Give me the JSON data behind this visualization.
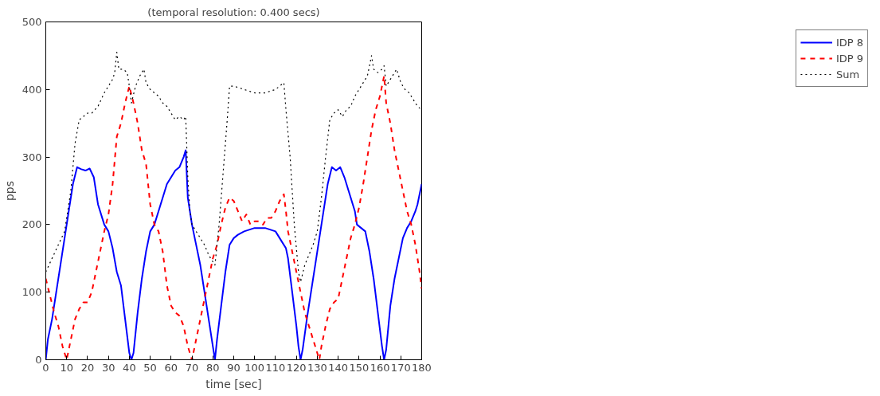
{
  "chart_data": {
    "type": "line",
    "title": "(temporal resolution: 0.400 secs)",
    "xlabel": "time [sec]",
    "ylabel": "pps",
    "xlim": [
      0,
      180
    ],
    "ylim": [
      0,
      500
    ],
    "xticks": [
      0,
      10,
      20,
      30,
      40,
      50,
      60,
      70,
      80,
      90,
      100,
      110,
      120,
      130,
      140,
      150,
      160,
      170,
      180
    ],
    "yticks": [
      0,
      100,
      200,
      300,
      400,
      500
    ],
    "grid": false,
    "legend": "right",
    "marker": "none",
    "series": [
      {
        "name": "IDP 8",
        "color": "#0000ff",
        "line_style": "solid",
        "x": [
          0,
          1,
          3,
          5,
          7,
          9,
          11,
          13,
          15,
          17,
          19,
          21,
          23,
          25,
          27,
          28,
          30,
          32,
          34,
          36,
          38,
          40,
          41,
          42,
          44,
          46,
          48,
          50,
          52,
          54,
          56,
          58,
          60,
          62,
          64,
          66,
          67,
          68,
          70,
          72,
          74,
          76,
          78,
          80,
          81,
          82,
          84,
          86,
          88,
          90,
          92,
          95,
          100,
          105,
          110,
          113,
          115,
          116,
          118,
          120,
          121,
          122,
          123,
          125,
          127,
          129,
          131,
          133,
          135,
          137,
          139,
          141,
          143,
          145,
          147,
          148,
          149,
          151,
          153,
          155,
          157,
          159,
          161,
          162,
          163,
          165,
          167,
          169,
          171,
          173,
          175,
          177,
          178,
          180
        ],
        "values": [
          0,
          30,
          60,
          100,
          140,
          180,
          220,
          260,
          285,
          282,
          280,
          283,
          270,
          230,
          210,
          200,
          190,
          165,
          130,
          110,
          60,
          10,
          0,
          10,
          70,
          120,
          160,
          190,
          200,
          220,
          240,
          260,
          270,
          280,
          285,
          300,
          310,
          240,
          200,
          170,
          140,
          100,
          60,
          20,
          0,
          30,
          80,
          130,
          170,
          180,
          185,
          190,
          195,
          195,
          190,
          175,
          165,
          150,
          100,
          50,
          20,
          0,
          15,
          60,
          100,
          140,
          180,
          220,
          260,
          285,
          280,
          285,
          270,
          250,
          230,
          220,
          200,
          195,
          190,
          160,
          120,
          70,
          20,
          0,
          15,
          80,
          120,
          150,
          180,
          195,
          205,
          220,
          230,
          260
        ]
      },
      {
        "name": "IDP 9",
        "color": "#ff0000",
        "line_style": "dashed",
        "x": [
          0,
          2,
          4,
          6,
          8,
          10,
          12,
          14,
          16,
          18,
          20,
          22,
          24,
          26,
          28,
          30,
          32,
          34,
          36,
          38,
          40,
          42,
          44,
          46,
          48,
          50,
          52,
          54,
          56,
          58,
          60,
          62,
          64,
          66,
          68,
          70,
          72,
          74,
          76,
          78,
          80,
          82,
          84,
          86,
          88,
          90,
          92,
          94,
          96,
          98,
          100,
          102,
          104,
          106,
          108,
          110,
          112,
          114,
          115,
          116,
          118,
          120,
          122,
          124,
          126,
          128,
          130,
          131,
          132,
          134,
          136,
          138,
          140,
          142,
          144,
          146,
          148,
          150,
          152,
          154,
          156,
          158,
          160,
          162,
          163,
          165,
          167,
          169,
          171,
          173,
          175,
          177,
          179,
          180
        ],
        "values": [
          120,
          95,
          70,
          50,
          20,
          0,
          30,
          60,
          75,
          85,
          85,
          100,
          130,
          160,
          190,
          215,
          260,
          330,
          350,
          380,
          405,
          380,
          350,
          310,
          290,
          230,
          200,
          190,
          160,
          110,
          80,
          70,
          65,
          50,
          20,
          0,
          30,
          60,
          90,
          120,
          150,
          170,
          200,
          225,
          240,
          235,
          220,
          205,
          215,
          200,
          205,
          205,
          200,
          210,
          210,
          220,
          235,
          245,
          220,
          190,
          160,
          130,
          100,
          70,
          50,
          30,
          10,
          0,
          20,
          50,
          75,
          85,
          90,
          120,
          150,
          180,
          200,
          225,
          260,
          300,
          340,
          370,
          390,
          420,
          380,
          350,
          310,
          280,
          250,
          220,
          200,
          170,
          130,
          105
        ]
      },
      {
        "name": "Sum",
        "color": "#000000",
        "line_style": "dotted",
        "x": [
          0,
          3,
          6,
          9,
          12,
          14,
          16,
          18,
          20,
          22,
          25,
          28,
          30,
          32,
          33,
          34,
          35,
          37,
          39,
          40,
          41,
          43,
          45,
          47,
          48,
          50,
          52,
          54,
          56,
          58,
          60,
          62,
          64,
          66,
          67,
          68,
          69,
          70,
          72,
          74,
          76,
          78,
          80,
          81,
          83,
          85,
          87,
          88,
          90,
          95,
          100,
          105,
          110,
          114,
          115,
          117,
          119,
          121,
          122,
          124,
          126,
          128,
          130,
          132,
          134,
          136,
          138,
          140,
          142,
          144,
          146,
          148,
          150,
          152,
          154,
          156,
          157,
          159,
          161,
          162,
          163,
          165,
          168,
          170,
          172,
          174,
          176,
          178,
          180
        ],
        "values": [
          130,
          150,
          170,
          190,
          250,
          320,
          355,
          360,
          365,
          365,
          375,
          395,
          405,
          415,
          425,
          455,
          430,
          430,
          425,
          405,
          380,
          405,
          420,
          430,
          410,
          400,
          395,
          390,
          380,
          375,
          365,
          355,
          360,
          355,
          360,
          270,
          220,
          200,
          190,
          180,
          170,
          155,
          145,
          140,
          200,
          280,
          360,
          405,
          405,
          400,
          395,
          395,
          400,
          410,
          370,
          300,
          200,
          130,
          115,
          140,
          155,
          170,
          190,
          240,
          300,
          355,
          365,
          370,
          360,
          370,
          375,
          390,
          400,
          410,
          420,
          450,
          430,
          425,
          430,
          435,
          405,
          415,
          430,
          410,
          400,
          395,
          385,
          375,
          370
        ]
      }
    ]
  }
}
